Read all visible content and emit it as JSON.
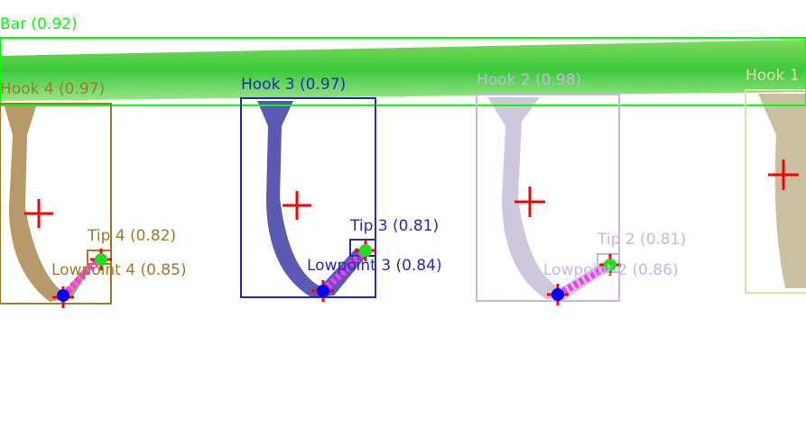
{
  "detections": [
    {
      "label": "Bar (0.92)"
    },
    {
      "label": "Hook 4 (0.97)"
    },
    {
      "label": "Hook 3 (0.97)"
    },
    {
      "label": "Hook 2 (0.98)"
    },
    {
      "label": "Hook 1"
    },
    {
      "label": "Tip 4 (0.82)"
    },
    {
      "label": "Lowpoint 4 (0.85)"
    },
    {
      "label": "Tip 3 (0.81)"
    },
    {
      "label": "Lowpoint 3 (0.84)"
    },
    {
      "label": "Tip 2 (0.81)"
    },
    {
      "label": "Lowpoint 2 (0.86)"
    }
  ]
}
